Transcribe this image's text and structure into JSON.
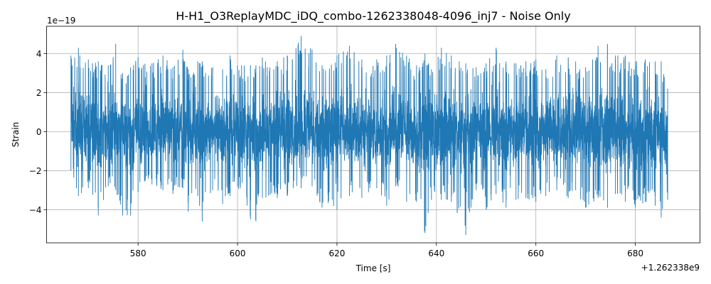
{
  "chart_data": {
    "type": "line",
    "title": "H-H1_O3ReplayMDC_iDQ_combo-1262338048-4096_inj7 - Noise Only",
    "xlabel": "Time [s]",
    "ylabel": "Strain",
    "x_offset_label": "+1.262338e9",
    "y_scale_label": "1e−19",
    "x_ticks": [
      580,
      600,
      620,
      640,
      660,
      680
    ],
    "x_tick_labels": [
      "580",
      "600",
      "620",
      "640",
      "660",
      "680"
    ],
    "y_ticks": [
      -4,
      -2,
      0,
      2,
      4
    ],
    "y_tick_labels": [
      "−4",
      "−2",
      "0",
      "2",
      "4"
    ],
    "xlim": [
      561.6,
      693.0
    ],
    "ylim": [
      -5.7,
      5.4
    ],
    "grid": true,
    "series": [
      {
        "color": "#1f77b4",
        "x_range": [
          566.5,
          686.5
        ],
        "envelope": [
          [
            566.5,
            -2.0,
            3.9
          ],
          [
            568,
            -3.3,
            4.3
          ],
          [
            570,
            -2.9,
            3.7
          ],
          [
            572,
            -4.3,
            3.6
          ],
          [
            574,
            -2.8,
            3.4
          ],
          [
            575.5,
            -3.0,
            4.5
          ],
          [
            576.9,
            -4.3,
            3.0
          ],
          [
            578.5,
            -4.3,
            3.3
          ],
          [
            580,
            -3.1,
            3.8
          ],
          [
            582.8,
            -2.7,
            3.5
          ],
          [
            585,
            -3.0,
            3.9
          ],
          [
            587,
            -3.2,
            3.3
          ],
          [
            589,
            -2.9,
            4.2
          ],
          [
            590.1,
            -4.1,
            3.2
          ],
          [
            592,
            -3.3,
            3.6
          ],
          [
            592.9,
            -4.6,
            3.6
          ],
          [
            595,
            -3.0,
            3.3
          ],
          [
            597,
            -3.7,
            3.2
          ],
          [
            598.5,
            -3.3,
            3.9
          ],
          [
            600,
            -2.8,
            3.4
          ],
          [
            602.6,
            -4.5,
            3.4
          ],
          [
            603.7,
            -4.6,
            3.4
          ],
          [
            605,
            -3.4,
            3.8
          ],
          [
            608,
            -3.4,
            3.6
          ],
          [
            610,
            -3.3,
            3.9
          ],
          [
            612.8,
            -2.9,
            4.9
          ],
          [
            615,
            -2.8,
            4.2
          ],
          [
            617,
            -3.9,
            3.4
          ],
          [
            620,
            -4.0,
            3.9
          ],
          [
            622.5,
            -3.3,
            4.4
          ],
          [
            625,
            -3.4,
            3.7
          ],
          [
            628,
            -2.9,
            3.7
          ],
          [
            630,
            -3.8,
            3.9
          ],
          [
            631.8,
            -2.8,
            4.5
          ],
          [
            634,
            -3.6,
            3.9
          ],
          [
            636,
            -3.6,
            3.4
          ],
          [
            637.7,
            -5.2,
            4.0
          ],
          [
            639,
            -3.5,
            3.2
          ],
          [
            641,
            -3.5,
            4.3
          ],
          [
            643,
            -3.6,
            3.9
          ],
          [
            645.9,
            -5.3,
            3.5
          ],
          [
            648,
            -3.0,
            3.3
          ],
          [
            650,
            -4.0,
            3.5
          ],
          [
            652,
            -3.2,
            4.3
          ],
          [
            654,
            -3.9,
            3.6
          ],
          [
            656,
            -3.5,
            3.5
          ],
          [
            658,
            -3.4,
            3.6
          ],
          [
            660,
            -3.6,
            3.7
          ],
          [
            662,
            -3.3,
            3.2
          ],
          [
            664.2,
            -3.0,
            3.9
          ],
          [
            666.5,
            -3.4,
            3.8
          ],
          [
            668,
            -3.0,
            3.6
          ],
          [
            670,
            -3.9,
            3.3
          ],
          [
            672.5,
            -3.4,
            4.4
          ],
          [
            674.4,
            -3.9,
            4.5
          ],
          [
            676,
            -3.2,
            3.9
          ],
          [
            678,
            -3.6,
            3.9
          ],
          [
            680,
            -3.9,
            3.6
          ],
          [
            682,
            -3.6,
            3.7
          ],
          [
            684,
            -3.8,
            3.6
          ],
          [
            685.2,
            -4.4,
            3.6
          ],
          [
            686.5,
            -3.5,
            2.2
          ]
        ]
      }
    ]
  }
}
